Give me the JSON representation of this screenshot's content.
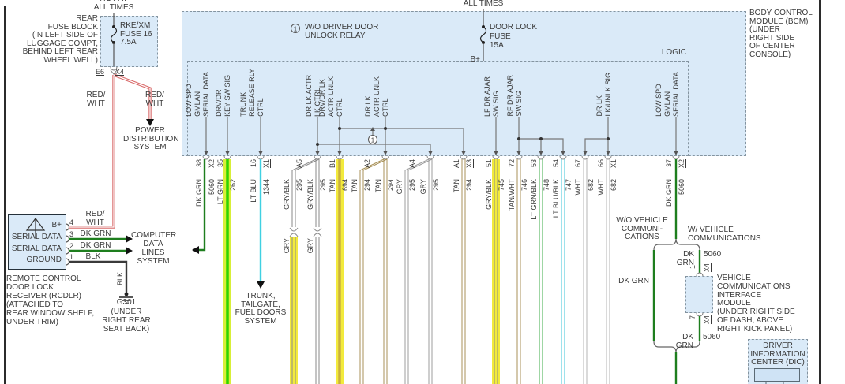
{
  "palette": {
    "module_fill": "#daeaf8",
    "dash_border": "#8494a0",
    "highlight_yellow": "#f2ea3c",
    "highlight_yellow_green": "#d8ef38",
    "wire_red_wht": "#d96a6a",
    "wire_dk_grn": "#1e7e1e",
    "wire_lt_grn": "#2fd400",
    "wire_lt_blu": "#3fd0e2",
    "wire_tan": "#a89158",
    "wire_gry": "#9e9e9e",
    "wire_gry_blk": "#8a8a8a",
    "wire_wht": "#b4b4b4",
    "wire_blk": "#3a3a3a",
    "wire_lt_grn_blk": "#3fae4a",
    "wire_lt_blu_blk": "#3fc6da"
  },
  "top_left": {
    "hot": "HOT AT\nALL TIMES",
    "fuse_block": "REAR\nFUSE BLOCK\n(IN LEFT SIDE OF\nLUGGAGE COMPT,\nBEHIND LEFT REAR\nWHEEL WELL)",
    "fuse": "RKE/XM\nFUSE 16\n7.5A",
    "grid": "E6",
    "conn": "X4",
    "wire_left": "RED/\nWHT",
    "wire_right": "RED/\nWHT",
    "power": "POWER\nDISTRIBUTION\nSYSTEM"
  },
  "bcm": {
    "hot": "ALL TIMES",
    "note_num": "1",
    "note": "W/O DRIVER DOOR\nUNLOCK RELAY",
    "fuse": "DOOR LOCK\nFUSE\n15A",
    "bplus": "B+",
    "logic": "LOGIC",
    "footnote": "1",
    "caption": "BODY CONTROL\nMODULE (BCM)\n(UNDER\nRIGHT SIDE\nOF CENTER\nCONSOLE)",
    "internal_pins": [
      "LOW SPD\nGMLAN\nSERIAL DATA",
      "DRV/DR\nKEY SW SIG",
      "TRUNK\nRELEASE RLY\nCTRL",
      "DR LK ACTR\nLK CTRL",
      "DRV/DR LK\nACTR UNLK\nCTRL",
      "DR LK\nACTR UNLK\nCTRL",
      "LF DR AJAR\nSW SIG",
      "RF DR AJAR\nSW SIG",
      "DR LK\nLK/UNLK SIG",
      "LOW SPD\nGMLAN\nSERIAL DATA"
    ]
  },
  "wires": [
    {
      "pin": "38",
      "conn": "X2",
      "color": "DK GRN",
      "circuit": "5060",
      "color_hex": "#1e7e1e",
      "highlight": false
    },
    {
      "pin": "35",
      "color": "LT GRN",
      "circuit": "262",
      "color_hex": "#2fd400",
      "highlight": true
    },
    {
      "pin": "16",
      "conn": "X1",
      "color": "LT BLU",
      "circuit": "1344",
      "color_hex": "#3fd0e2",
      "highlight": false
    },
    {
      "pin": "A5",
      "color": "GRY/BLK",
      "circuit": "295",
      "below_label": "GRY",
      "color_hex": "#8a8a8a",
      "highlight": true
    },
    {
      "color": "GRY/BLK",
      "circuit": "295",
      "below_label": "GRY",
      "color_hex": "#8a8a8a",
      "highlight": false
    },
    {
      "pin": "B1",
      "color": "TAN",
      "circuit": "694",
      "color_hex": "#c9af3e",
      "highlight": true
    },
    {
      "pin": "A2",
      "color": "TAN",
      "circuit": "294",
      "color_hex": "#a89158",
      "highlight": false
    },
    {
      "color": "TAN",
      "circuit": "294",
      "color_hex": "#a89158",
      "highlight": false
    },
    {
      "pin": "A4",
      "color": "GRY",
      "circuit": "295",
      "color_hex": "#9e9e9e",
      "highlight": false
    },
    {
      "color": "GRY",
      "circuit": "295",
      "color_hex": "#9e9e9e",
      "highlight": false
    },
    {
      "pin": "A1",
      "conn": "X3",
      "color": "TAN",
      "circuit": "294",
      "color_hex": "#a89158",
      "highlight": false
    },
    {
      "pin": "51",
      "color": "GRY/BLK",
      "circuit": "745",
      "color_hex": "#8a8a8a",
      "highlight": true
    },
    {
      "pin": "72",
      "color": "TAN/WHT",
      "circuit": "746",
      "color_hex": "#a89158",
      "highlight": false
    },
    {
      "pin": "53",
      "color": "LT GRN/BLK",
      "circuit": "748",
      "color_hex": "#3fae4a",
      "highlight": false
    },
    {
      "pin": "54",
      "color": "LT BLU/BLK",
      "circuit": "747",
      "color_hex": "#3fc6da",
      "highlight": false
    },
    {
      "pin": "67",
      "color": "WHT",
      "circuit": "682",
      "color_hex": "#b4b4b4",
      "highlight": false
    },
    {
      "pin": "66",
      "conn": "X1",
      "color": "WHT",
      "circuit": "682",
      "color_hex": "#b4b4b4",
      "highlight": false
    },
    {
      "pin": "37",
      "conn": "X2",
      "color": "DK GRN",
      "circuit": "5060",
      "color_hex": "#1e7e1e",
      "highlight": false
    }
  ],
  "rcdlr": {
    "pins": [
      "4",
      "3",
      "2",
      "1"
    ],
    "pin_labels": [
      "B+",
      "SERIAL DATA",
      "SERIAL DATA",
      "GROUND"
    ],
    "wire_labels": [
      "RED/\nWHT",
      "DK GRN",
      "DK GRN",
      "BLK"
    ],
    "caption": "REMOTE CONTROL\nDOOR LOCK\nRECEIVER (RCDLR)\n(ATTACHED TO\nREAR WINDOW SHELF,\nUNDER TRIM)",
    "computer": "COMPUTER\nDATA LINES\nSYSTEM",
    "blk": "BLK",
    "ground_id": "G301",
    "ground_loc": "(UNDER\nRIGHT REAR\nSEAT BACK)"
  },
  "mid": {
    "trunk": "TRUNK,\nTAILGATE,\nFUEL DOORS\nSYSTEM"
  },
  "right": {
    "wo": "W/O VEHICLE\nCOMMUNI-\nCATIONS",
    "w": "W/ VEHICLE\nCOMMUNICATIONS",
    "dk_grn_top": "DK GRN",
    "c5060_top": "5060",
    "pin_in": "1",
    "conn_in": "X4",
    "pin_out": "7",
    "conn_out": "X4",
    "vcim": "VEHICLE\nCOMMUNICATIONS\nINTERFACE\nMODULE\n(UNDER RIGHT SIDE\nOF DASH, ABOVE\nRIGHT KICK PANEL)",
    "dk_grn_left": "DK GRN",
    "dk_grn_bot": "DK GRN",
    "c5060_bot": "5060",
    "dic": "DRIVER\nINFORMATION\nCENTER (DIC)"
  }
}
